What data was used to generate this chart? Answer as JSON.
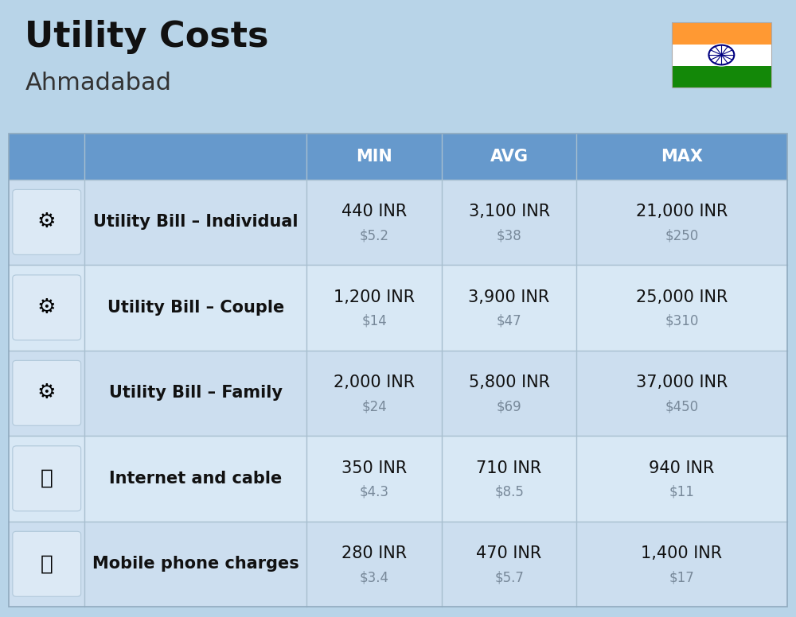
{
  "title": "Utility Costs",
  "subtitle": "Ahmadabad",
  "background_color": "#b8d4e8",
  "header_bg_color": "#6699cc",
  "header_text_color": "#ffffff",
  "row_bg_color_1": "#ccdeef",
  "row_bg_color_2": "#d8e8f5",
  "col_divider_color": "#a8bfcf",
  "headers": [
    "",
    "",
    "MIN",
    "AVG",
    "MAX"
  ],
  "rows": [
    {
      "label": "Utility Bill – Individual",
      "icon": "utility_individual",
      "min_inr": "440 INR",
      "min_usd": "$5.2",
      "avg_inr": "3,100 INR",
      "avg_usd": "$38",
      "max_inr": "21,000 INR",
      "max_usd": "$250"
    },
    {
      "label": "Utility Bill – Couple",
      "icon": "utility_couple",
      "min_inr": "1,200 INR",
      "min_usd": "$14",
      "avg_inr": "3,900 INR",
      "avg_usd": "$47",
      "max_inr": "25,000 INR",
      "max_usd": "$310"
    },
    {
      "label": "Utility Bill – Family",
      "icon": "utility_family",
      "min_inr": "2,000 INR",
      "min_usd": "$24",
      "avg_inr": "5,800 INR",
      "avg_usd": "$69",
      "max_inr": "37,000 INR",
      "max_usd": "$450"
    },
    {
      "label": "Internet and cable",
      "icon": "internet",
      "min_inr": "350 INR",
      "min_usd": "$4.3",
      "avg_inr": "710 INR",
      "avg_usd": "$8.5",
      "max_inr": "940 INR",
      "max_usd": "$11"
    },
    {
      "label": "Mobile phone charges",
      "icon": "mobile",
      "min_inr": "280 INR",
      "min_usd": "$3.4",
      "avg_inr": "470 INR",
      "avg_usd": "$5.7",
      "max_inr": "1,400 INR",
      "max_usd": "$17"
    }
  ],
  "title_fontsize": 32,
  "subtitle_fontsize": 22,
  "header_fontsize": 15,
  "row_label_fontsize": 15,
  "row_value_fontsize": 15,
  "row_usd_fontsize": 12,
  "india_flag_colors": [
    "#FF9933",
    "#FFFFFF",
    "#138808"
  ],
  "india_flag_ashoka_color": "#000080"
}
